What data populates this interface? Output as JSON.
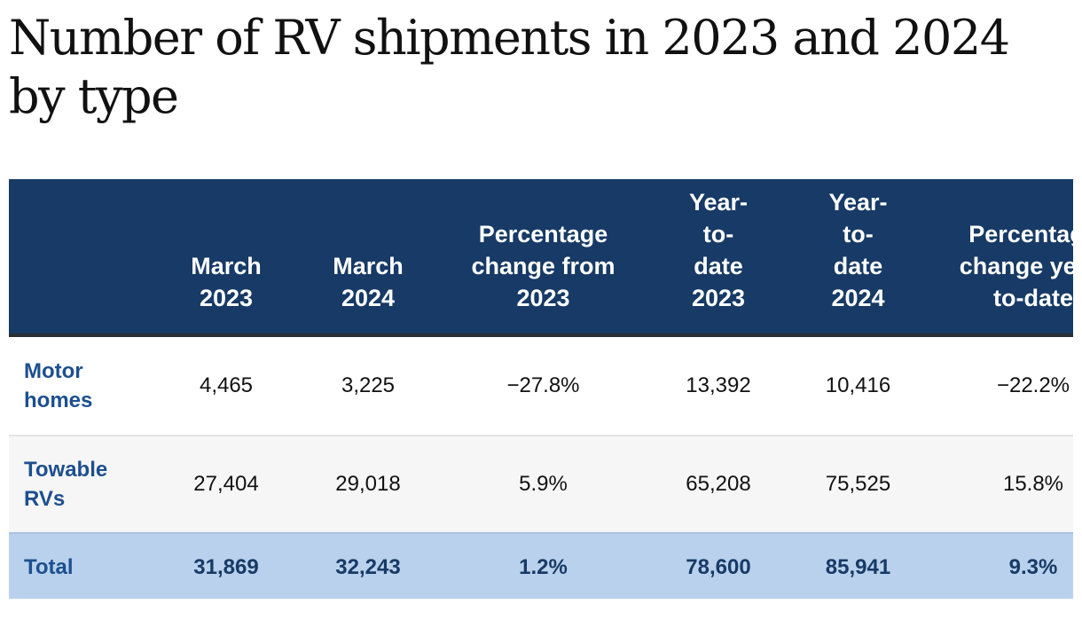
{
  "title": "Number of RV shipments in 2023 and 2024 by type",
  "table": {
    "headers": [
      "",
      "March 2023",
      "March 2024",
      "Percentage change from 2023",
      "Year-to-date 2023",
      "Year-to-date 2024",
      "Percentage change year-to-date"
    ],
    "rows": [
      {
        "label": "Motor homes",
        "values": [
          "4,465",
          "3,225",
          "−27.8%",
          "13,392",
          "10,416",
          "−22.2%"
        ]
      },
      {
        "label": "Towable RVs",
        "values": [
          "27,404",
          "29,018",
          "5.9%",
          "65,208",
          "75,525",
          "15.8%"
        ]
      },
      {
        "label": "Total",
        "values": [
          "31,869",
          "32,243",
          "1.2%",
          "78,600",
          "85,941",
          "9.3%"
        ]
      }
    ]
  },
  "colors": {
    "header_bg": "#173a66",
    "label_text": "#1d4f8f",
    "total_bg": "#b9d1ec"
  }
}
